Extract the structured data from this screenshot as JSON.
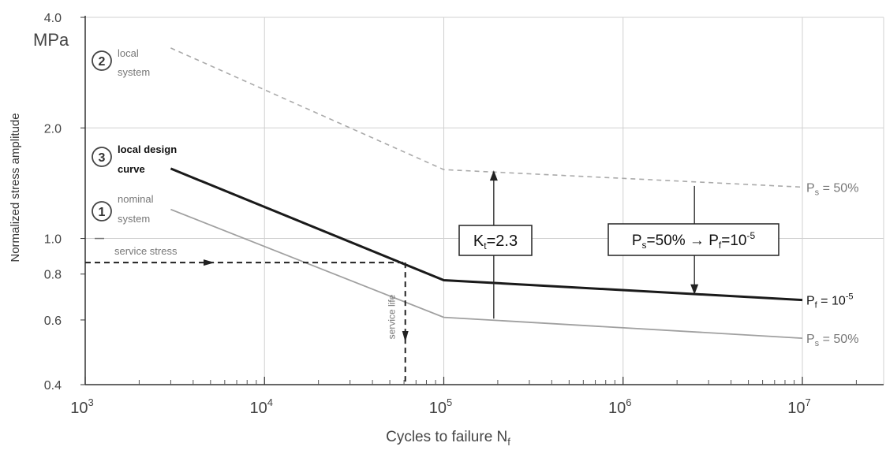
{
  "chart_data": {
    "type": "line",
    "xscale": "log",
    "yscale": "log",
    "xlim": [
      1000,
      30000000
    ],
    "ylim": [
      0.4,
      4.0
    ],
    "xlabel": "Cycles to failure N",
    "xlabel_sub": "f",
    "ylabel": "Normalized stress amplitude",
    "yunit": "MPa",
    "y_ticks": [
      "0.4",
      "0.6",
      "0.8",
      "1.0",
      "2.0",
      "4.0"
    ],
    "x_ticks": [
      {
        "base": "10",
        "exp": "3"
      },
      {
        "base": "10",
        "exp": "4"
      },
      {
        "base": "10",
        "exp": "5"
      },
      {
        "base": "10",
        "exp": "6"
      },
      {
        "base": "10",
        "exp": "7"
      }
    ],
    "series": [
      {
        "name": "local system",
        "number": "2",
        "style": "dashed",
        "color": "#aaaaaa",
        "points": [
          [
            3000,
            3.3
          ],
          [
            100000,
            1.54
          ],
          [
            10000000,
            1.38
          ]
        ]
      },
      {
        "name": "local design curve",
        "number": "3",
        "style": "solid-bold",
        "color": "#1a1a1a",
        "points": [
          [
            3000,
            1.55
          ],
          [
            100000,
            0.77
          ],
          [
            10000000,
            0.68
          ]
        ]
      },
      {
        "name": "nominal system",
        "number": "1",
        "style": "solid",
        "color": "#a0a0a0",
        "points": [
          [
            3000,
            1.2
          ],
          [
            100000,
            0.61
          ],
          [
            10000000,
            0.535
          ]
        ]
      }
    ],
    "right_labels": [
      {
        "main": "P",
        "sub": "s",
        "tail": " = 50%"
      },
      {
        "main": "P",
        "sub": "f",
        "tail": " = 10",
        "sup": "-5"
      },
      {
        "main": "P",
        "sub": "s",
        "tail": " = 50%"
      }
    ],
    "series_labels": [
      {
        "number": "2",
        "line1": "local",
        "line2": "system"
      },
      {
        "number": "3",
        "line1": "local design",
        "line2": "curve"
      },
      {
        "number": "1",
        "line1": "nominal",
        "line2": "system"
      }
    ],
    "annotations": {
      "service_stress": "service stress",
      "service_life": "service life",
      "service_stress_value": 0.86,
      "service_life_value": 61000,
      "kt_box": {
        "main": "K",
        "sub": "t",
        "tail": "=2.3",
        "x": 190000
      },
      "ps_box": {
        "a": "P",
        "a_sub": "s",
        "b": "=50% → P",
        "b_sub": "f",
        "c": "=10",
        "c_sup": "-5",
        "x": 2500000
      }
    },
    "colors": {
      "grid": "#d0d0d0",
      "axis": "#333333",
      "dashed": "#aaaaaa",
      "design": "#1a1a1a",
      "nominal": "#a0a0a0"
    }
  }
}
